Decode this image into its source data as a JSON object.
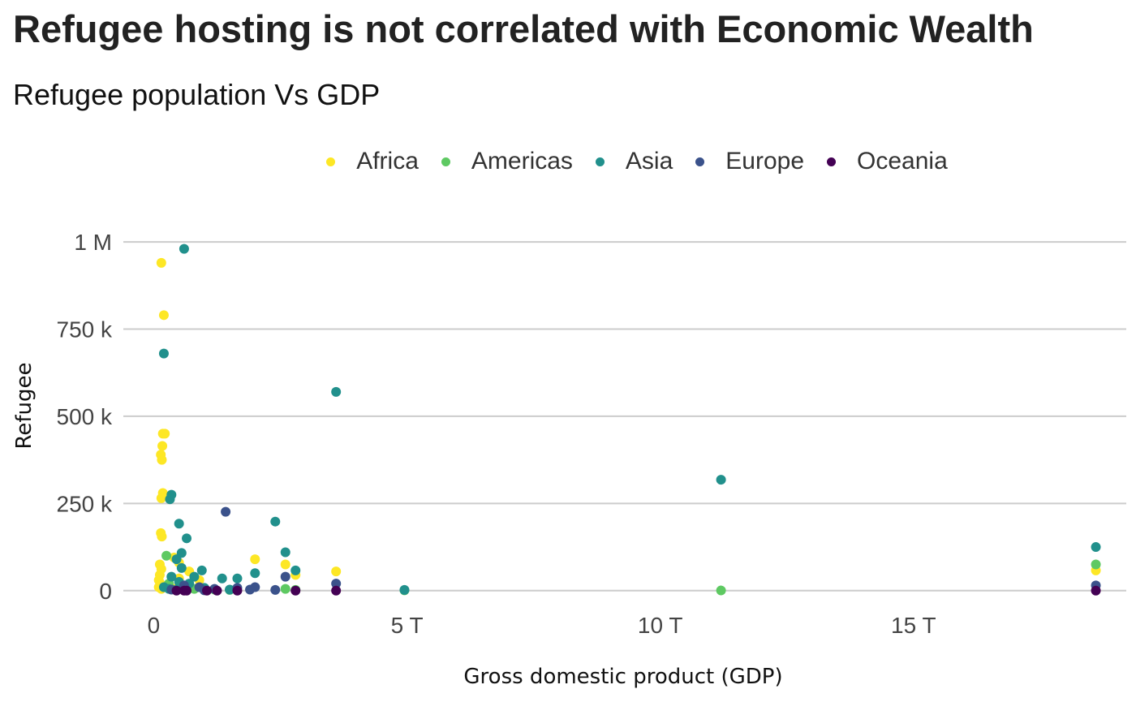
{
  "chart_data": {
    "type": "scatter",
    "title": "Refugee hosting is not correlated with Economic Wealth",
    "subtitle": "Refugee population Vs GDP",
    "xlabel": "Gross domestic product (GDP)",
    "ylabel": "Refugee",
    "x_unit": "trillion USD",
    "xlim": [
      -0.6,
      19.2
    ],
    "ylim": [
      -75000,
      1070000
    ],
    "x_ticks": [
      {
        "value": 0,
        "label": "0"
      },
      {
        "value": 5,
        "label": "5 T"
      },
      {
        "value": 10,
        "label": "10 T"
      },
      {
        "value": 15,
        "label": "15 T"
      }
    ],
    "y_ticks": [
      {
        "value": 0,
        "label": "0"
      },
      {
        "value": 250000,
        "label": "250 k"
      },
      {
        "value": 500000,
        "label": "500 k"
      },
      {
        "value": 750000,
        "label": "750 k"
      },
      {
        "value": 1000000,
        "label": "1 M"
      }
    ],
    "grid": "horizontal major lines",
    "legend_position": "top",
    "series": [
      {
        "name": "Africa",
        "color": "#FDE725",
        "points": [
          [
            0.15,
            940000
          ],
          [
            0.2,
            790000
          ],
          [
            0.18,
            450000
          ],
          [
            0.22,
            450000
          ],
          [
            0.17,
            415000
          ],
          [
            0.14,
            390000
          ],
          [
            0.16,
            375000
          ],
          [
            0.18,
            280000
          ],
          [
            0.15,
            265000
          ],
          [
            0.14,
            165000
          ],
          [
            0.16,
            155000
          ],
          [
            0.12,
            75000
          ],
          [
            0.15,
            62000
          ],
          [
            0.12,
            45000
          ],
          [
            0.1,
            30000
          ],
          [
            0.13,
            20000
          ],
          [
            0.1,
            10000
          ],
          [
            0.15,
            5000
          ],
          [
            0.4,
            95000
          ],
          [
            0.5,
            80000
          ],
          [
            0.7,
            55000
          ],
          [
            0.5,
            35000
          ],
          [
            0.9,
            30000
          ],
          [
            0.3,
            15000
          ],
          [
            0.4,
            5000
          ],
          [
            2.0,
            90000
          ],
          [
            2.6,
            75000
          ],
          [
            2.8,
            45000
          ],
          [
            3.6,
            55000
          ],
          [
            18.6,
            58000
          ]
        ]
      },
      {
        "name": "Americas",
        "color": "#5EC962",
        "points": [
          [
            0.25,
            100000
          ],
          [
            0.3,
            20000
          ],
          [
            0.6,
            15000
          ],
          [
            0.8,
            5000
          ],
          [
            1.2,
            3000
          ],
          [
            1.5,
            2000
          ],
          [
            2.6,
            5000
          ],
          [
            2.8,
            2000
          ],
          [
            4.95,
            1000
          ],
          [
            11.2,
            500
          ],
          [
            18.6,
            75000
          ]
        ]
      },
      {
        "name": "Asia",
        "color": "#21908C",
        "points": [
          [
            0.6,
            980000
          ],
          [
            0.2,
            680000
          ],
          [
            3.6,
            570000
          ],
          [
            11.2,
            318000
          ],
          [
            0.35,
            275000
          ],
          [
            0.32,
            262000
          ],
          [
            2.4,
            198000
          ],
          [
            0.5,
            192000
          ],
          [
            0.65,
            150000
          ],
          [
            0.55,
            108000
          ],
          [
            2.6,
            110000
          ],
          [
            0.45,
            90000
          ],
          [
            0.55,
            65000
          ],
          [
            0.95,
            58000
          ],
          [
            2.8,
            58000
          ],
          [
            2.0,
            50000
          ],
          [
            0.35,
            40000
          ],
          [
            0.8,
            40000
          ],
          [
            1.35,
            35000
          ],
          [
            1.65,
            35000
          ],
          [
            0.5,
            25000
          ],
          [
            0.7,
            20000
          ],
          [
            0.2,
            10000
          ],
          [
            0.3,
            5000
          ],
          [
            0.45,
            3000
          ],
          [
            1.0,
            8000
          ],
          [
            1.5,
            3000
          ],
          [
            4.95,
            2000
          ],
          [
            18.6,
            125000
          ]
        ]
      },
      {
        "name": "Europe",
        "color": "#3B528B",
        "points": [
          [
            1.42,
            226000
          ],
          [
            2.6,
            40000
          ],
          [
            3.6,
            20000
          ],
          [
            0.6,
            15000
          ],
          [
            0.9,
            10000
          ],
          [
            1.2,
            5000
          ],
          [
            1.65,
            8000
          ],
          [
            2.0,
            10000
          ],
          [
            2.4,
            2000
          ],
          [
            1.0,
            1000
          ],
          [
            0.35,
            3000
          ],
          [
            1.9,
            3000
          ],
          [
            18.6,
            15000
          ]
        ]
      },
      {
        "name": "Oceania",
        "color": "#440154",
        "points": [
          [
            0.45,
            0
          ],
          [
            0.6,
            0
          ],
          [
            0.65,
            0
          ],
          [
            1.05,
            0
          ],
          [
            1.25,
            0
          ],
          [
            1.65,
            0
          ],
          [
            2.8,
            0
          ],
          [
            3.6,
            0
          ],
          [
            18.6,
            0
          ]
        ]
      }
    ]
  }
}
